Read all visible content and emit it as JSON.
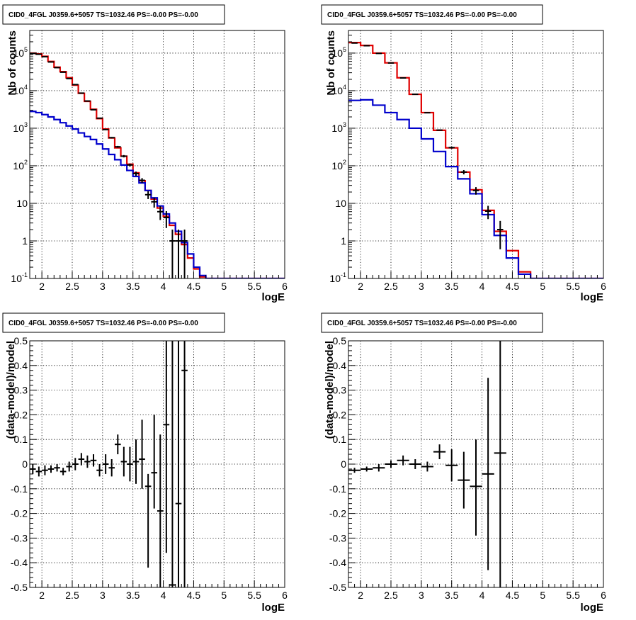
{
  "colors": {
    "data": "#000000",
    "model": "#e00000",
    "background": "#0000cc"
  },
  "chart_data": [
    {
      "type": "line",
      "title": "CID0_4FGL J0359.6+5057 TS=1032.46 PS=-0.00 PS=-0.00",
      "xlabel": "logE",
      "ylabel": "Nb of counts",
      "xlim": [
        1.8,
        6.0
      ],
      "ylim": [
        0.1,
        400000
      ],
      "yscale": "log",
      "grid": true,
      "x_ticks": [
        "2",
        "2.5",
        "3",
        "3.5",
        "4",
        "4.5",
        "5",
        "5.5",
        "6"
      ],
      "y_ticks": [
        {
          "value": 0.1,
          "base": "10",
          "exp": "-1"
        },
        {
          "value": 1,
          "text": "1"
        },
        {
          "value": 10,
          "text": "10"
        },
        {
          "value": 100,
          "base": "10",
          "exp": "2"
        },
        {
          "value": 1000,
          "base": "10",
          "exp": "3"
        },
        {
          "value": 10000,
          "base": "10",
          "exp": "4"
        },
        {
          "value": 100000,
          "base": "10",
          "exp": "5"
        }
      ],
      "bin_edges": [
        1.8,
        1.9,
        2.0,
        2.1,
        2.2,
        2.3,
        2.4,
        2.5,
        2.6,
        2.7,
        2.8,
        2.9,
        3.0,
        3.1,
        3.2,
        3.3,
        3.4,
        3.5,
        3.6,
        3.7,
        3.8,
        3.9,
        4.0,
        4.1,
        4.2,
        4.3,
        4.4,
        4.5,
        4.6,
        4.7,
        4.8,
        4.9,
        5.0,
        5.1,
        5.2,
        5.3,
        5.4,
        5.5,
        5.6,
        5.7,
        5.8,
        5.9,
        6.0
      ],
      "series": [
        {
          "role": "model",
          "values": [
            100000,
            95000,
            82000,
            60000,
            42000,
            32000,
            22000,
            14000,
            8500,
            5200,
            3200,
            1800,
            950,
            550,
            300,
            180,
            110,
            65,
            40,
            22,
            13,
            7.5,
            4.5,
            2.6,
            1.5,
            0.8,
            0.35,
            0.18,
            0.11,
            0.1,
            0.1,
            0.1,
            0.1,
            0.1,
            0.1,
            0.1,
            0.1,
            0.1,
            0.1,
            0.1,
            0.1,
            0.1
          ]
        },
        {
          "role": "background",
          "values": [
            2800,
            2600,
            2300,
            2000,
            1700,
            1400,
            1150,
            950,
            750,
            600,
            500,
            380,
            280,
            200,
            145,
            105,
            75,
            52,
            35,
            22,
            14,
            8.5,
            5.2,
            3.0,
            1.8,
            0.9,
            0.45,
            0.2,
            0.12,
            0.1,
            0.1,
            0.1,
            0.1,
            0.1,
            0.1,
            0.1,
            0.1,
            0.1,
            0.1,
            0.1,
            0.1,
            0.1
          ]
        },
        {
          "role": "data",
          "x": [
            1.85,
            1.95,
            2.05,
            2.15,
            2.25,
            2.35,
            2.45,
            2.55,
            2.65,
            2.75,
            2.85,
            2.95,
            3.05,
            3.15,
            3.25,
            3.35,
            3.45,
            3.55,
            3.65,
            3.75,
            3.85,
            3.95,
            4.05,
            4.15,
            4.25,
            4.35
          ],
          "y": [
            98000,
            93000,
            80000,
            58000,
            41000,
            31000,
            21000,
            14500,
            8600,
            5300,
            3100,
            1850,
            920,
            560,
            320,
            180,
            105,
            62,
            41,
            17,
            11,
            6.0,
            4.2,
            1.0,
            1.0,
            1.0
          ],
          "ylow": [
            97000,
            92000,
            79000,
            57500,
            40500,
            30800,
            20850,
            14380,
            8510,
            5230,
            3045,
            1807,
            890,
            536,
            302,
            167,
            95,
            54,
            35,
            13,
            7.7,
            3.6,
            2.2,
            0.1,
            0.1,
            0.1
          ],
          "yhigh": [
            99000,
            94000,
            81000,
            58500,
            41500,
            31200,
            21150,
            14620,
            8690,
            5370,
            3155,
            1893,
            950,
            584,
            338,
            193,
            115,
            70,
            47,
            21,
            14.3,
            8.4,
            6.2,
            2.0,
            2.0,
            2.0
          ]
        }
      ]
    },
    {
      "type": "line",
      "title": "CID0_4FGL J0359.6+5057 TS=1032.46 PS=-0.00 PS=-0.00",
      "xlabel": "logE",
      "ylabel": "Nb of counts",
      "xlim": [
        1.8,
        6.0
      ],
      "ylim": [
        0.1,
        400000
      ],
      "yscale": "log",
      "grid": true,
      "x_ticks": [
        "2",
        "2.5",
        "3",
        "3.5",
        "4",
        "4.5",
        "5",
        "5.5",
        "6"
      ],
      "y_ticks": [
        {
          "value": 0.1,
          "base": "10",
          "exp": "-1"
        },
        {
          "value": 1,
          "text": "1"
        },
        {
          "value": 10,
          "text": "10"
        },
        {
          "value": 100,
          "base": "10",
          "exp": "2"
        },
        {
          "value": 1000,
          "base": "10",
          "exp": "3"
        },
        {
          "value": 10000,
          "base": "10",
          "exp": "4"
        },
        {
          "value": 100000,
          "base": "10",
          "exp": "5"
        }
      ],
      "bin_edges": [
        1.8,
        2.0,
        2.2,
        2.4,
        2.6,
        2.8,
        3.0,
        3.2,
        3.4,
        3.6,
        3.8,
        4.0,
        4.2,
        4.4,
        4.6,
        4.8,
        5.0,
        5.2,
        5.4,
        5.6,
        5.8,
        6.0
      ],
      "series": [
        {
          "role": "model",
          "values": [
            190000,
            160000,
            100000,
            55000,
            22000,
            8000,
            2600,
            880,
            300,
            68,
            23,
            6.5,
            1.8,
            0.55,
            0.15,
            0.1,
            0.1,
            0.1,
            0.1,
            0.1,
            0.1
          ]
        },
        {
          "role": "background",
          "values": [
            5500,
            5700,
            4100,
            2600,
            1700,
            1000,
            520,
            240,
            95,
            45,
            18,
            5.0,
            1.4,
            0.35,
            0.13,
            0.1,
            0.1,
            0.1,
            0.1,
            0.1,
            0.1
          ]
        },
        {
          "role": "data",
          "x": [
            1.9,
            2.1,
            2.3,
            2.5,
            2.7,
            2.9,
            3.1,
            3.3,
            3.5,
            3.7,
            3.9,
            4.1,
            4.3
          ],
          "y": [
            185000,
            157000,
            98000,
            54500,
            21800,
            8000,
            2580,
            890,
            305,
            68,
            22,
            6.2,
            2.0
          ],
          "ylow": [
            184000,
            156000,
            97000,
            54000,
            21600,
            7900,
            2530,
            860,
            285,
            59,
            17,
            3.8,
            0.6
          ],
          "yhigh": [
            186000,
            158000,
            99000,
            55000,
            22000,
            8100,
            2630,
            920,
            325,
            77,
            27,
            8.6,
            3.4
          ]
        }
      ]
    },
    {
      "type": "scatter",
      "title": "CID0_4FGL J0359.6+5057 TS=1032.46 PS=-0.00 PS=-0.00",
      "xlabel": "logE",
      "ylabel": "(data-model)/model",
      "xlim": [
        1.8,
        6.0
      ],
      "ylim": [
        -0.5,
        0.5
      ],
      "grid": true,
      "x_ticks": [
        "2",
        "2.5",
        "3",
        "3.5",
        "4",
        "4.5",
        "5",
        "5.5",
        "6"
      ],
      "y_ticks": [
        "-0.5",
        "-0.4",
        "-0.3",
        "-0.2",
        "-0.1",
        "0",
        "0.1",
        "0.2",
        "0.3",
        "0.4",
        "0.5"
      ],
      "series": [
        {
          "role": "data",
          "x": [
            1.85,
            1.95,
            2.05,
            2.15,
            2.25,
            2.35,
            2.45,
            2.55,
            2.65,
            2.75,
            2.85,
            2.95,
            3.05,
            3.15,
            3.25,
            3.35,
            3.45,
            3.55,
            3.65,
            3.75,
            3.85,
            3.95,
            4.05,
            4.15,
            4.25,
            4.35
          ],
          "xerr": 0.05,
          "y": [
            -0.02,
            -0.03,
            -0.025,
            -0.02,
            -0.015,
            -0.03,
            -0.01,
            0,
            0.02,
            0.01,
            0.015,
            -0.025,
            0,
            -0.015,
            0.08,
            0.01,
            0,
            0.01,
            0.02,
            -0.09,
            -0.035,
            -0.19,
            0.16,
            -0.49,
            -0.16,
            0.38
          ],
          "ylow": [
            -0.04,
            -0.05,
            -0.045,
            -0.035,
            -0.03,
            -0.045,
            -0.03,
            -0.025,
            -0.005,
            -0.015,
            -0.01,
            -0.05,
            -0.04,
            -0.05,
            0.04,
            -0.05,
            -0.07,
            -0.08,
            -0.1,
            -0.42,
            -0.18,
            -0.5,
            -0.36,
            -0.5,
            -0.5,
            -0.5
          ],
          "yhigh": [
            0,
            -0.01,
            -0.005,
            -0.005,
            0,
            -0.015,
            0.01,
            0.025,
            0.045,
            0.035,
            0.04,
            0,
            0.04,
            0.02,
            0.12,
            0.07,
            0.07,
            0.1,
            0.18,
            -0.04,
            0.2,
            0.12,
            0.5,
            0.5,
            0.5,
            0.5
          ]
        }
      ]
    },
    {
      "type": "scatter",
      "title": "CID0_4FGL J0359.6+5057 TS=1032.46 PS=-0.00 PS=-0.00",
      "xlabel": "logE",
      "ylabel": "(data-model)/model",
      "xlim": [
        1.8,
        6.0
      ],
      "ylim": [
        -0.5,
        0.5
      ],
      "grid": true,
      "x_ticks": [
        "2",
        "2.5",
        "3",
        "3.5",
        "4",
        "4.5",
        "5",
        "5.5",
        "6"
      ],
      "y_ticks": [
        "-0.5",
        "-0.4",
        "-0.3",
        "-0.2",
        "-0.1",
        "0",
        "0.1",
        "0.2",
        "0.3",
        "0.4",
        "0.5"
      ],
      "series": [
        {
          "role": "data",
          "x": [
            1.9,
            2.1,
            2.3,
            2.5,
            2.7,
            2.9,
            3.1,
            3.3,
            3.5,
            3.7,
            3.9,
            4.1,
            4.3
          ],
          "xerr": 0.1,
          "y": [
            -0.025,
            -0.02,
            -0.015,
            0,
            0.015,
            0,
            -0.01,
            0.05,
            -0.005,
            -0.065,
            -0.09,
            -0.04,
            0.045
          ],
          "ylow": [
            -0.035,
            -0.03,
            -0.03,
            -0.015,
            -0.005,
            -0.02,
            -0.03,
            0.02,
            -0.07,
            -0.18,
            -0.29,
            -0.43,
            -0.5
          ],
          "yhigh": [
            -0.015,
            -0.01,
            0,
            0.015,
            0.035,
            0.02,
            0.01,
            0.08,
            0.06,
            0.05,
            0.1,
            0.35,
            0.5
          ]
        }
      ]
    }
  ]
}
